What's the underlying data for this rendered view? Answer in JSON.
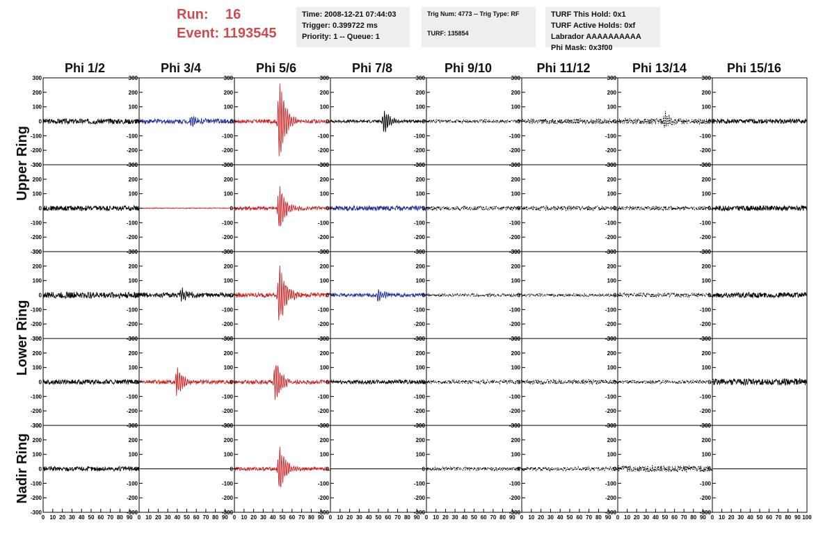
{
  "header": {
    "run_label": "Run:",
    "run_value": "16",
    "event_label": "Event:",
    "event_value": "1193545",
    "time_box": [
      "Time: 2008-12-21 07:44:03",
      "Trigger: 0.399722 ms",
      "Priority: 1 -- Queue: 1"
    ],
    "trig_box": [
      "Trig Num: 4773 -- Trig Type: RF",
      "",
      "TURF: 135854"
    ],
    "turf_box": [
      "TURF This Hold: 0x1",
      "TURF Active Holds: 0xf",
      "Labrador AAAAAAAAAA",
      "Phi Mask: 0x3f00"
    ]
  },
  "columns": [
    "Phi 1/2",
    "Phi 3/4",
    "Phi 5/6",
    "Phi 7/8",
    "Phi 9/10",
    "Phi 11/12",
    "Phi 13/14",
    "Phi 15/16"
  ],
  "ring_labels": [
    "Upper Ring",
    "Lower Ring",
    "Nadir Ring"
  ],
  "colors": {
    "normal": "#000000",
    "triggered": "#cc2222",
    "masked": "#1a2a99",
    "header_red": "#cc4c4c",
    "info_bg": "#eeeeee"
  },
  "chart_data": {
    "type": "line",
    "xlim": [
      0,
      100
    ],
    "ylim": [
      -300,
      300
    ],
    "y_ticks": [
      "300",
      "200",
      "100",
      "0",
      "-100",
      "-200",
      "-300"
    ],
    "x_ticks": [
      "0",
      "10",
      "20",
      "30",
      "40",
      "50",
      "60",
      "70",
      "80",
      "90",
      "100"
    ],
    "panels": [
      [
        {
          "color": "normal",
          "amp": 18,
          "pulse": 0,
          "pc": 0
        },
        {
          "color": "masked",
          "amp": 16,
          "pulse": 35,
          "pc": 55
        },
        {
          "color": "triggered",
          "amp": 14,
          "pulse": 300,
          "pc": 47
        },
        {
          "color": "normal",
          "amp": 10,
          "pulse": 85,
          "pc": 56
        },
        {
          "color": "normal",
          "amp": 12,
          "pulse": 0,
          "pc": 0,
          "dash": true
        },
        {
          "color": "normal",
          "amp": 18,
          "pulse": 0,
          "pc": 0,
          "dash": true
        },
        {
          "color": "normal",
          "amp": 20,
          "pulse": 60,
          "pc": 50,
          "dash": true
        },
        {
          "color": "normal",
          "amp": 16,
          "pulse": 0,
          "pc": 0
        }
      ],
      [
        {
          "color": "normal",
          "amp": 18,
          "pulse": 0,
          "pc": 0
        },
        {
          "color": "triggered",
          "amp": 3,
          "pulse": 0,
          "pc": 0
        },
        {
          "color": "triggered",
          "amp": 14,
          "pulse": 170,
          "pc": 47
        },
        {
          "color": "masked",
          "amp": 16,
          "pulse": 0,
          "pc": 0
        },
        {
          "color": "normal",
          "amp": 14,
          "pulse": 0,
          "pc": 0,
          "dash": true
        },
        {
          "color": "normal",
          "amp": 16,
          "pulse": 0,
          "pc": 0,
          "dash": true
        },
        {
          "color": "normal",
          "amp": 14,
          "pulse": 0,
          "pc": 0,
          "dash": true
        },
        {
          "color": "normal",
          "amp": 18,
          "pulse": 0,
          "pc": 0
        }
      ],
      [
        {
          "color": "normal",
          "amp": 22,
          "pulse": 0,
          "pc": 0
        },
        {
          "color": "normal",
          "amp": 16,
          "pulse": 45,
          "pc": 45
        },
        {
          "color": "triggered",
          "amp": 16,
          "pulse": 230,
          "pc": 47
        },
        {
          "color": "masked",
          "amp": 12,
          "pulse": 45,
          "pc": 50
        },
        {
          "color": "normal",
          "amp": 10,
          "pulse": 0,
          "pc": 0,
          "dash": true
        },
        {
          "color": "normal",
          "amp": 10,
          "pulse": 0,
          "pc": 0,
          "dash": true
        },
        {
          "color": "normal",
          "amp": 14,
          "pulse": 0,
          "pc": 0,
          "dash": true
        },
        {
          "color": "normal",
          "amp": 18,
          "pulse": 0,
          "pc": 0
        }
      ],
      [
        {
          "color": "normal",
          "amp": 16,
          "pulse": 0,
          "pc": 0
        },
        {
          "color": "triggered",
          "amp": 14,
          "pulse": 110,
          "pc": 40
        },
        {
          "color": "triggered",
          "amp": 14,
          "pulse": 160,
          "pc": 43
        },
        {
          "color": "normal",
          "amp": 14,
          "pulse": 0,
          "pc": 0
        },
        {
          "color": "normal",
          "amp": 14,
          "pulse": 0,
          "pc": 0,
          "dash": true
        },
        {
          "color": "normal",
          "amp": 16,
          "pulse": 0,
          "pc": 0,
          "dash": true
        },
        {
          "color": "normal",
          "amp": 12,
          "pulse": 0,
          "pc": 0,
          "dash": true
        },
        {
          "color": "normal",
          "amp": 22,
          "pulse": 0,
          "pc": 0
        }
      ],
      [
        {
          "color": "normal",
          "amp": 16,
          "pulse": 0,
          "pc": 0
        },
        {
          "color": "normal",
          "amp": 0,
          "pulse": 0,
          "pc": 0
        },
        {
          "color": "triggered",
          "amp": 12,
          "pulse": 170,
          "pc": 47
        },
        {
          "color": "normal",
          "amp": 0,
          "pulse": 0,
          "pc": 0
        },
        {
          "color": "normal",
          "amp": 12,
          "pulse": 0,
          "pc": 0,
          "dash": true
        },
        {
          "color": "normal",
          "amp": 14,
          "pulse": 0,
          "pc": 0,
          "dash": true
        },
        {
          "color": "normal",
          "amp": 22,
          "pulse": 0,
          "pc": 0,
          "dash": true
        },
        {
          "color": "normal",
          "amp": 0,
          "pulse": 0,
          "pc": 0
        }
      ]
    ]
  }
}
